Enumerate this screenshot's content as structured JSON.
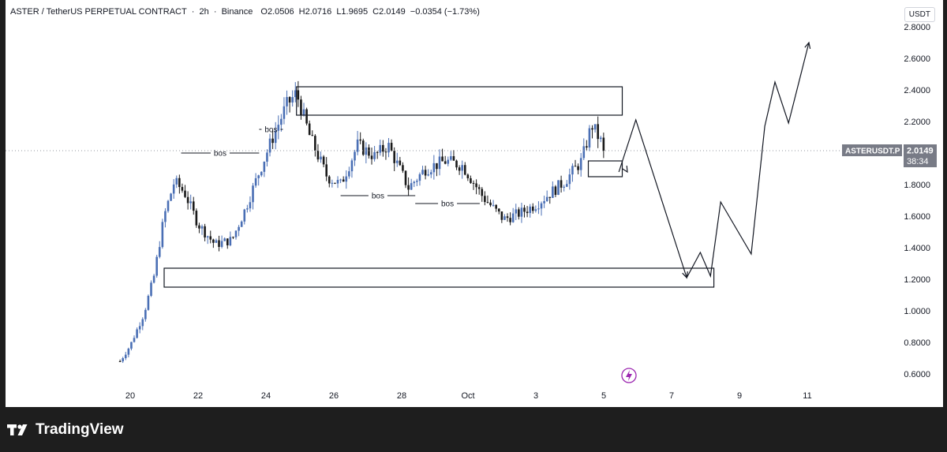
{
  "header": {
    "symbol": "ASTER / TetherUS PERPETUAL CONTRACT",
    "interval": "2h",
    "exchange": "Binance",
    "open": "O2.0506",
    "high": "H2.0716",
    "low": "L1.9695",
    "close": "C2.0149",
    "change": "−0.0354 (−1.73%)",
    "separator": "·"
  },
  "currency": "USDT",
  "price_label": {
    "ticker": "ASTERUSDT.P",
    "price": "2.0149",
    "countdown": "38:34"
  },
  "brand": "TradingView",
  "colors": {
    "up": "#4a6fb5",
    "down": "#1a1a1a",
    "drawing": "#131722",
    "price_tag": "#787b86"
  },
  "chart_data": {
    "type": "candlestick",
    "timeframe": "2h",
    "x_tick_labels": [
      "20",
      "22",
      "24",
      "26",
      "28",
      "Oct",
      "3",
      "5",
      "7",
      "9",
      "11"
    ],
    "y_tick_labels": [
      "2.8000",
      "2.6000",
      "2.4000",
      "2.2000",
      "2.0000",
      "1.8000",
      "1.6000",
      "1.4000",
      "1.2000",
      "1.0000",
      "0.8000",
      "0.6000"
    ],
    "ylim": [
      0.55,
      2.82
    ],
    "last_price": 2.0149,
    "price_path_anchors": [
      {
        "day": 19.7,
        "price": 0.68
      },
      {
        "day": 20.0,
        "price": 0.78
      },
      {
        "day": 20.4,
        "price": 0.98
      },
      {
        "day": 20.7,
        "price": 1.22
      },
      {
        "day": 21.0,
        "price": 1.6
      },
      {
        "day": 21.3,
        "price": 1.82
      },
      {
        "day": 21.6,
        "price": 1.75
      },
      {
        "day": 22.0,
        "price": 1.55
      },
      {
        "day": 22.5,
        "price": 1.42
      },
      {
        "day": 23.0,
        "price": 1.45
      },
      {
        "day": 23.4,
        "price": 1.65
      },
      {
        "day": 23.8,
        "price": 1.88
      },
      {
        "day": 24.2,
        "price": 2.1
      },
      {
        "day": 24.6,
        "price": 2.3
      },
      {
        "day": 24.9,
        "price": 2.38
      },
      {
        "day": 25.3,
        "price": 2.1
      },
      {
        "day": 25.8,
        "price": 1.85
      },
      {
        "day": 26.2,
        "price": 1.8
      },
      {
        "day": 26.7,
        "price": 2.05
      },
      {
        "day": 27.2,
        "price": 1.98
      },
      {
        "day": 27.6,
        "price": 2.05
      },
      {
        "day": 28.2,
        "price": 1.78
      },
      {
        "day": 28.7,
        "price": 1.9
      },
      {
        "day": 29.3,
        "price": 1.95
      },
      {
        "day": 29.8,
        "price": 1.92
      },
      {
        "day": 30.4,
        "price": 1.72
      },
      {
        "day": 31.0,
        "price": 1.58
      },
      {
        "day": 31.5,
        "price": 1.62
      },
      {
        "day": 32.0,
        "price": 1.68
      },
      {
        "day": 32.8,
        "price": 1.82
      },
      {
        "day": 33.3,
        "price": 1.95
      },
      {
        "day": 33.6,
        "price": 2.18
      },
      {
        "day": 33.9,
        "price": 2.06
      },
      {
        "day": 34.0,
        "price": 2.0149
      }
    ],
    "zones": [
      {
        "day_start": 24.9,
        "day_end": 34.5,
        "price_low": 2.24,
        "price_high": 2.42
      },
      {
        "day_start": 21.0,
        "day_end": 37.2,
        "price_low": 1.15,
        "price_high": 1.27
      },
      {
        "day_start": 33.5,
        "day_end": 34.5,
        "price_low": 1.85,
        "price_high": 1.95
      }
    ],
    "bos_markers": [
      {
        "label": "bos",
        "day_start": 21.5,
        "day_end": 23.8,
        "price": 2.0
      },
      {
        "label": "bos",
        "day_start": 23.8,
        "day_end": 24.5,
        "price": 2.15
      },
      {
        "label": "bos",
        "day_start": 26.2,
        "day_end": 28.4,
        "price": 1.73
      },
      {
        "label": "bos",
        "day_start": 28.4,
        "day_end": 30.3,
        "price": 1.68
      }
    ],
    "projection_path": [
      {
        "day": 34.4,
        "price": 1.88
      },
      {
        "day": 34.9,
        "price": 2.21
      },
      {
        "day": 36.4,
        "price": 1.21
      },
      {
        "day": 36.8,
        "price": 1.37
      },
      {
        "day": 37.1,
        "price": 1.22
      },
      {
        "day": 37.4,
        "price": 1.69
      },
      {
        "day": 38.3,
        "price": 1.36
      },
      {
        "day": 38.7,
        "price": 2.17
      },
      {
        "day": 39.0,
        "price": 2.45
      },
      {
        "day": 39.4,
        "price": 2.19
      },
      {
        "day": 40.0,
        "price": 2.7
      }
    ]
  }
}
